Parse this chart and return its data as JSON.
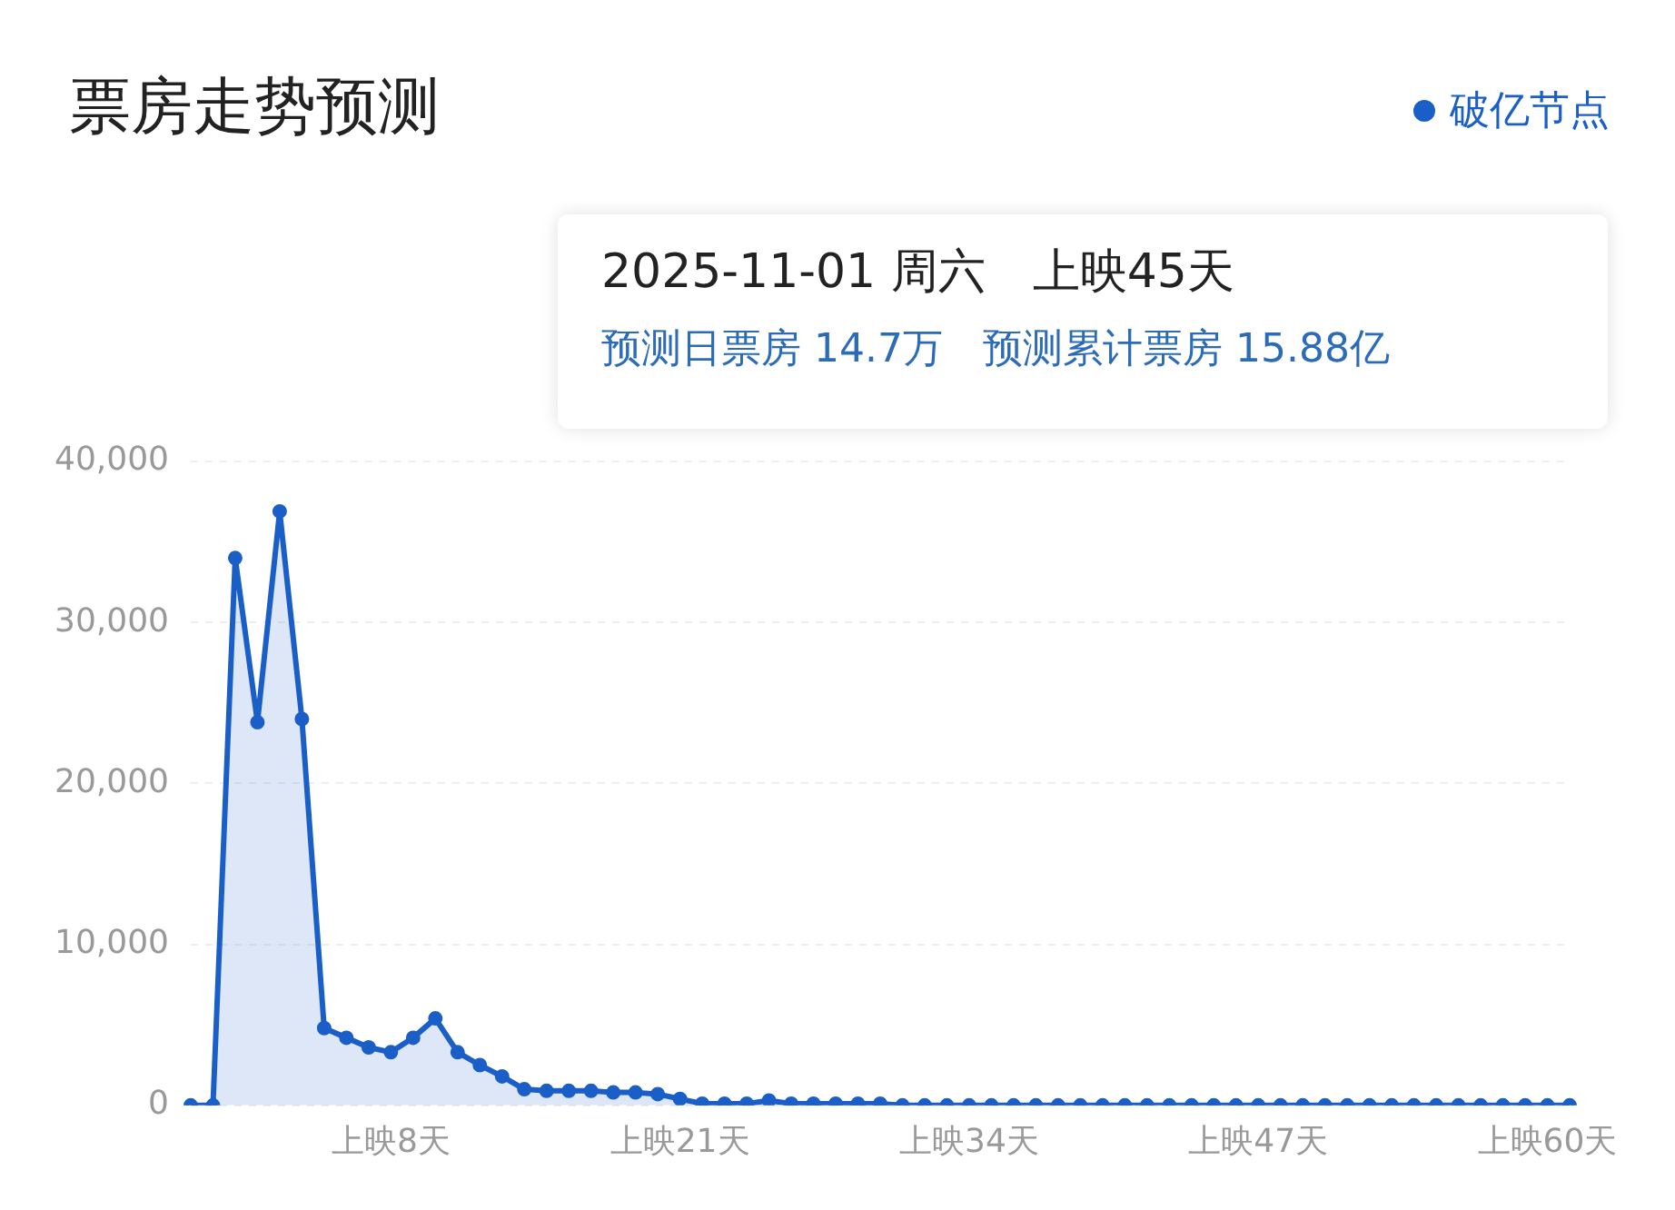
{
  "chart_data": {
    "type": "area",
    "title": "票房走势预测",
    "annotations": [
      "2025-11-01 周六　上映45天",
      "预测日票房 14.7万　预测累计票房 15.88亿"
    ],
    "categories": [
      null,
      null,
      null,
      null,
      null,
      null,
      null,
      null,
      null,
      "上映8天",
      null,
      null,
      null,
      null,
      null,
      null,
      null,
      null,
      null,
      null,
      null,
      null,
      "上映21天",
      null,
      null,
      null,
      null,
      null,
      null,
      null,
      null,
      null,
      null,
      null,
      null,
      "上映34天",
      null,
      null,
      null,
      null,
      null,
      null,
      null,
      null,
      null,
      null,
      null,
      null,
      "上映47天",
      null,
      null,
      null,
      null,
      null,
      null,
      null,
      null,
      null,
      null,
      null,
      null,
      "上映60天",
      null
    ],
    "series": [
      {
        "name": "破亿节点",
        "color": "#1a5fc8",
        "values": [
          0,
          0,
          34000,
          23800,
          36900,
          24000,
          4800,
          4200,
          3600,
          3300,
          4200,
          5400,
          3300,
          2500,
          1800,
          1000,
          900,
          900,
          900,
          800,
          800,
          700,
          400,
          100,
          100,
          100,
          300,
          100,
          100,
          100,
          100,
          100,
          0,
          0,
          0,
          0,
          0,
          0,
          0,
          0,
          0,
          0,
          0,
          0,
          0,
          0,
          0,
          0,
          0,
          0,
          0,
          0,
          0,
          0,
          0,
          0,
          0,
          0,
          0,
          0,
          0,
          0,
          0
        ]
      }
    ],
    "ylim": [
      0,
      40000
    ],
    "yticks": [
      {
        "value": 0,
        "label": "0"
      },
      {
        "value": 10000,
        "label": "10,000"
      },
      {
        "value": 20000,
        "label": "20,000"
      },
      {
        "value": 30000,
        "label": "30,000"
      },
      {
        "value": 40000,
        "label": "40,000"
      }
    ],
    "grid": "y",
    "legend": "top right",
    "marker": "circle",
    "line_style": "solid"
  }
}
